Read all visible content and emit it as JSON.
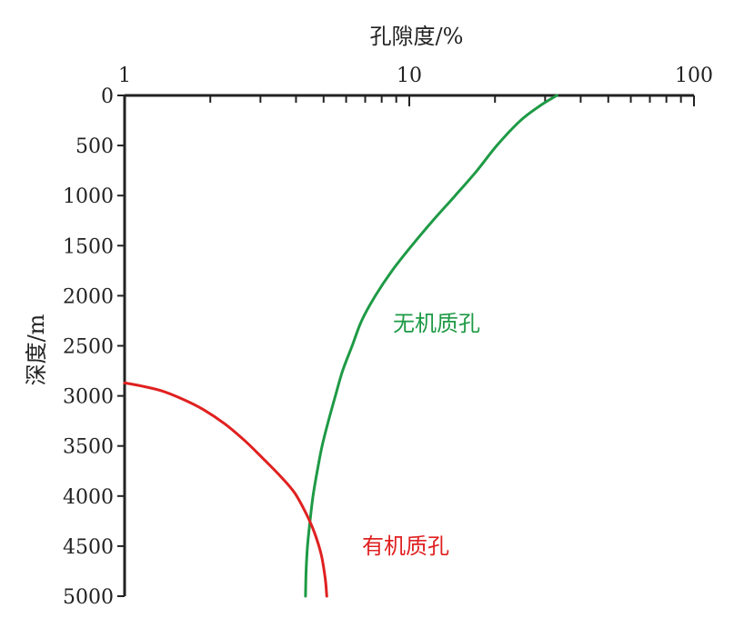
{
  "chart_data": {
    "type": "line",
    "title": "",
    "xlabel": "孔隙度/%",
    "ylabel": "深度/m",
    "x_scale": "log",
    "x_axis_position": "top",
    "xlim": [
      1,
      100
    ],
    "ylim": [
      0,
      5000
    ],
    "y_inverted": true,
    "grid": false,
    "x_tick_labels": [
      "1",
      "10",
      "100"
    ],
    "x_tick_values": [
      1,
      10,
      100
    ],
    "y_tick_labels": [
      "0",
      "500",
      "1000",
      "1500",
      "2000",
      "2500",
      "3000",
      "3500",
      "4000",
      "4500",
      "5000"
    ],
    "y_tick_values": [
      0,
      500,
      1000,
      1500,
      2000,
      2500,
      3000,
      3500,
      4000,
      4500,
      5000
    ],
    "series": [
      {
        "name": "无机质孔",
        "color": "#1e9a45",
        "points": [
          [
            33,
            0
          ],
          [
            28.9,
            100
          ],
          [
            24.6,
            250
          ],
          [
            20.3,
            500
          ],
          [
            17.3,
            750
          ],
          [
            14.5,
            1000
          ],
          [
            12.1,
            1250
          ],
          [
            10.2,
            1500
          ],
          [
            8.7,
            1750
          ],
          [
            7.6,
            2000
          ],
          [
            6.8,
            2250
          ],
          [
            6.3,
            2500
          ],
          [
            5.83,
            2750
          ],
          [
            5.5,
            3000
          ],
          [
            5.2,
            3250
          ],
          [
            4.94,
            3500
          ],
          [
            4.75,
            3750
          ],
          [
            4.59,
            4000
          ],
          [
            4.48,
            4250
          ],
          [
            4.39,
            4500
          ],
          [
            4.34,
            4750
          ],
          [
            4.32,
            5000
          ]
        ]
      },
      {
        "name": "有机质孔",
        "color": "#e02020",
        "points": [
          [
            1.0,
            2870
          ],
          [
            1.14,
            2900
          ],
          [
            1.35,
            2950
          ],
          [
            1.62,
            3040
          ],
          [
            1.9,
            3140
          ],
          [
            2.25,
            3280
          ],
          [
            2.65,
            3450
          ],
          [
            3.05,
            3620
          ],
          [
            3.52,
            3800
          ],
          [
            3.96,
            3970
          ],
          [
            4.35,
            4180
          ],
          [
            4.65,
            4370
          ],
          [
            4.91,
            4590
          ],
          [
            5.07,
            4830
          ],
          [
            5.13,
            5000
          ]
        ]
      }
    ]
  }
}
